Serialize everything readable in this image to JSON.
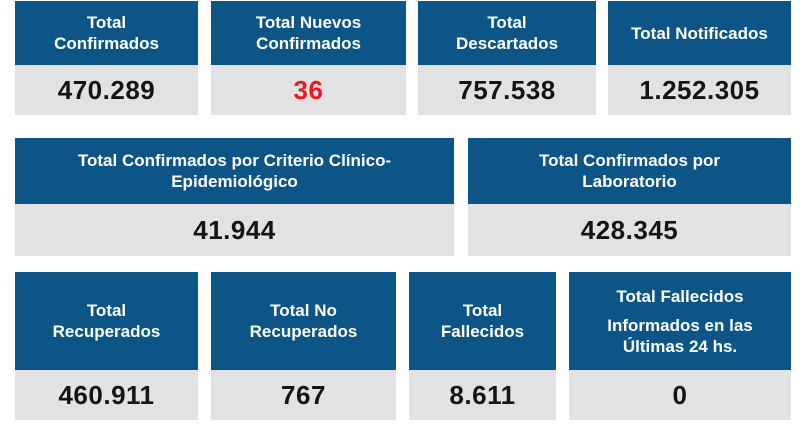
{
  "row1": [
    {
      "label_lines": [
        "Total",
        "Confirmados"
      ],
      "value": "470.289"
    },
    {
      "label_lines": [
        "Total Nuevos",
        "Confirmados"
      ],
      "value": "36",
      "value_color": "#e8191f"
    },
    {
      "label_lines": [
        "Total",
        "Descartados"
      ],
      "value": "757.538"
    },
    {
      "label_lines": [
        "Total Notificados"
      ],
      "value": "1.252.305"
    }
  ],
  "row2": [
    {
      "label_lines": [
        "Total Confirmados por Criterio Clínico-",
        "Epidemiológico"
      ],
      "value": "41.944"
    },
    {
      "label_lines": [
        "Total Confirmados por",
        "Laboratorio"
      ],
      "value": "428.345"
    }
  ],
  "row3": [
    {
      "label_lines": [
        "Total",
        "Recuperados"
      ],
      "value": "460.911"
    },
    {
      "label_lines": [
        "Total No",
        "Recuperados"
      ],
      "value": "767"
    },
    {
      "label_lines": [
        "Total",
        "Fallecidos"
      ],
      "value": "8.611"
    },
    {
      "label_lines": [
        "Total Fallecidos",
        "Informados en las",
        "Últimas 24 hs."
      ],
      "value": "0"
    }
  ],
  "colors": {
    "header_bg": "#0d5587",
    "value_bg": "#e2e2e2",
    "highlight": "#e8191f"
  }
}
